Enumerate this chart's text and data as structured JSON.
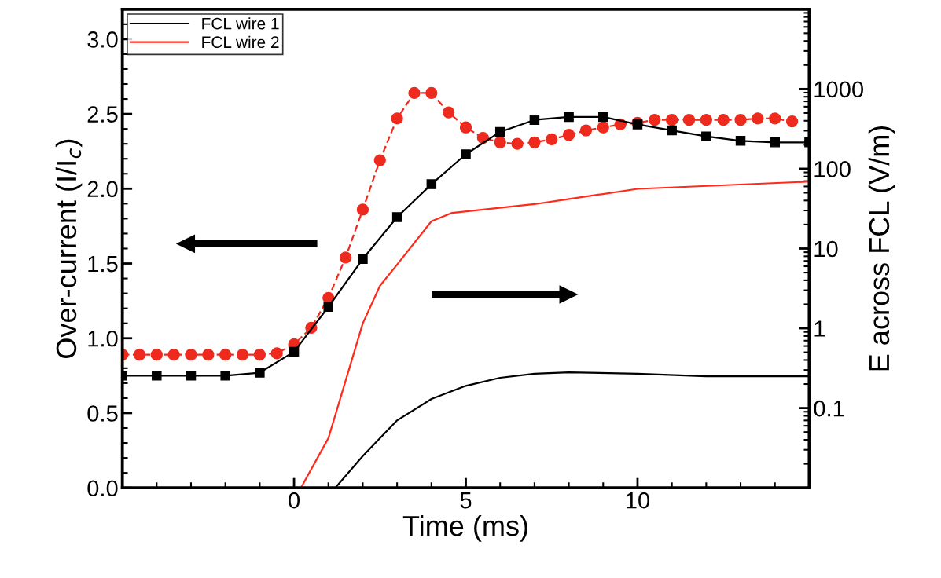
{
  "chart_data": {
    "type": "line",
    "xlabel": "Time (ms)",
    "ylabel": "Over-current (I/I$_{c}$)",
    "y2label": "E across FCL (V/m)",
    "xlim": [
      -5,
      15
    ],
    "xticks": [
      0,
      5,
      10
    ],
    "ylim": [
      0,
      3.2
    ],
    "yticks": [
      {
        "value": 0,
        "label": "0.0"
      },
      {
        "value": 0.5,
        "label": "0.5"
      },
      {
        "value": 1,
        "label": "1.0"
      },
      {
        "value": 1.5,
        "label": "1.5"
      },
      {
        "value": 2,
        "label": "2.0"
      },
      {
        "value": 2.5,
        "label": "2.5"
      },
      {
        "value": 3,
        "label": "3.0"
      }
    ],
    "y2lim": [
      0.01,
      10000
    ],
    "y2ticks": [
      0.1,
      1,
      10,
      100,
      1000
    ],
    "log": "y2",
    "grid": false,
    "legend": "top left",
    "series": [
      {
        "color": "#000000",
        "marker": "square",
        "line_style": "solid",
        "x": [
          -5,
          -4,
          -3,
          -2,
          -1,
          0,
          1,
          2,
          3,
          4,
          5,
          6,
          7,
          8,
          9,
          10,
          11,
          12,
          13,
          14,
          15
        ],
        "values": [
          0.75,
          0.75,
          0.75,
          0.75,
          0.77,
          0.91,
          1.21,
          1.53,
          1.81,
          2.03,
          2.23,
          2.38,
          2.46,
          2.48,
          2.48,
          2.43,
          2.39,
          2.35,
          2.32,
          2.31,
          2.31
        ]
      },
      {
        "color": "#ee2a1e",
        "marker": "circle",
        "line_style": "dashed",
        "x": [
          -5,
          -4.5,
          -4,
          -3.5,
          -3,
          -2.5,
          -2,
          -1.5,
          -1,
          -0.5,
          0,
          0.5,
          1,
          1.5,
          2,
          2.5,
          3,
          3.5,
          4,
          4.5,
          5,
          5.5,
          6,
          6.5,
          7,
          7.5,
          8,
          8.5,
          9,
          9.5,
          10,
          10.5,
          11,
          11.5,
          12,
          12.5,
          13,
          13.5,
          14,
          14.5
        ],
        "values": [
          0.89,
          0.89,
          0.89,
          0.89,
          0.89,
          0.89,
          0.89,
          0.89,
          0.89,
          0.9,
          0.96,
          1.07,
          1.27,
          1.54,
          1.86,
          2.19,
          2.47,
          2.64,
          2.64,
          2.51,
          2.41,
          2.34,
          2.31,
          2.3,
          2.31,
          2.33,
          2.36,
          2.39,
          2.41,
          2.43,
          2.44,
          2.46,
          2.46,
          2.46,
          2.46,
          2.46,
          2.46,
          2.47,
          2.47,
          2.45
        ]
      },
      {
        "name": "FCL wire 1",
        "color": "#000000",
        "marker": "none",
        "line_style": "solid",
        "axis": "y2",
        "x": [
          1.2,
          2,
          3,
          4,
          5,
          6,
          7,
          8,
          10,
          12,
          15
        ],
        "values": [
          0.01,
          0.025,
          0.07,
          0.13,
          0.19,
          0.24,
          0.27,
          0.28,
          0.27,
          0.25,
          0.25
        ]
      },
      {
        "name": "FCL wire 2",
        "color": "#ff2a1a",
        "marker": "none",
        "line_style": "solid",
        "axis": "y2",
        "x": [
          0.2,
          1,
          2,
          2.5,
          3,
          4,
          4.6,
          7,
          10,
          15
        ],
        "values": [
          0.01,
          0.042,
          1.15,
          3.4,
          6.3,
          22,
          28,
          36,
          56,
          69
        ]
      }
    ]
  }
}
